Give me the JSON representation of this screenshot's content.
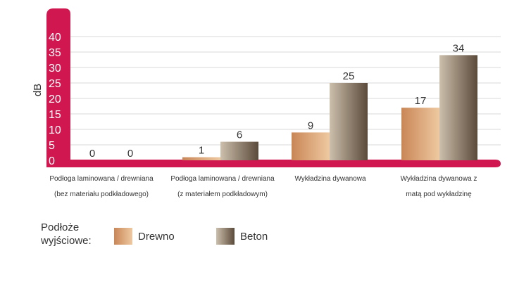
{
  "chart_data": {
    "type": "bar",
    "ylabel": "dB",
    "ylim": [
      0,
      40
    ],
    "yticks": [
      "0",
      "5",
      "10",
      "15",
      "20",
      "25",
      "30",
      "35",
      "40"
    ],
    "categories": [
      [
        "Podłoga laminowana / drewniana",
        "(bez materiału podkładowego)"
      ],
      [
        "Podłoga laminowana / drewniana",
        "(z materiałem podkładowym)"
      ],
      [
        "Wykładzina dywanowa"
      ],
      [
        "Wykładzina dywanowa z",
        "matą pod wykładzinę"
      ]
    ],
    "series": [
      {
        "name": "Drewno",
        "values": [
          0,
          1,
          9,
          17
        ],
        "colors": [
          "#c98656",
          "#eec9a1"
        ]
      },
      {
        "name": "Beton",
        "values": [
          0,
          6,
          25,
          34
        ],
        "colors": [
          "#5b4a3a",
          "#ccbfac"
        ]
      }
    ],
    "legend": {
      "title_lines": [
        "Podłoże",
        "wyjściowe:"
      ],
      "placement": "bottom-left"
    },
    "grid": true,
    "axis_color": "#d1174f"
  }
}
